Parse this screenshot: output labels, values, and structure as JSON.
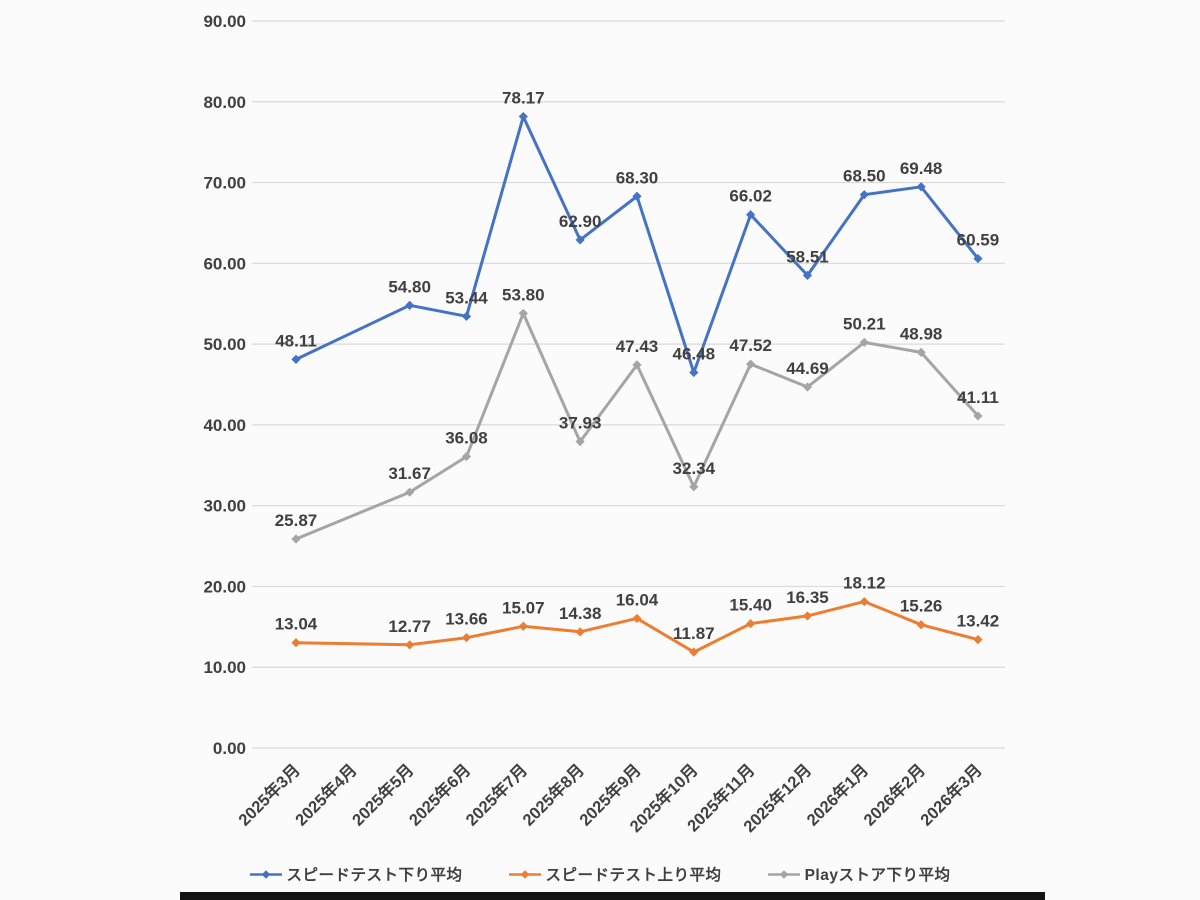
{
  "chart_data": {
    "type": "line",
    "title": "",
    "xlabel": "",
    "ylabel": "",
    "grid": true,
    "marker": "diamond",
    "value_format": "0.00",
    "legend_position": "bottom",
    "categories": [
      "2025年3月",
      "2025年4月",
      "2025年5月",
      "2025年6月",
      "2025年7月",
      "2025年8月",
      "2025年9月",
      "2025年10月",
      "2025年11月",
      "2025年12月",
      "2026年1月",
      "2026年2月",
      "2026年3月"
    ],
    "note_missing_data_month": "2025年4月",
    "series": [
      {
        "name": "スピードテスト下り平均",
        "color": "#4472C4",
        "values": [
          48.11,
          null,
          54.8,
          53.44,
          78.17,
          62.9,
          68.3,
          46.48,
          66.02,
          58.51,
          68.5,
          69.48,
          60.59
        ]
      },
      {
        "name": "スピードテスト上り平均",
        "color": "#ED7D31",
        "values": [
          13.04,
          null,
          12.77,
          13.66,
          15.07,
          14.38,
          16.04,
          11.87,
          15.4,
          16.35,
          18.12,
          15.26,
          13.42
        ]
      },
      {
        "name": "Playストア下り平均",
        "color": "#A5A5A5",
        "values": [
          25.87,
          null,
          31.67,
          36.08,
          53.8,
          37.93,
          47.43,
          32.34,
          47.52,
          44.69,
          50.21,
          48.98,
          41.11
        ]
      }
    ],
    "yaxis": {
      "min": 0,
      "max": 90,
      "step": 10,
      "tick_labels": [
        "0.00",
        "10.00",
        "20.00",
        "30.00",
        "40.00",
        "50.00",
        "60.00",
        "70.00",
        "80.00",
        "90.00"
      ]
    }
  },
  "colors": {
    "text": "#404040",
    "gridline": "#D9D9D9",
    "series_blue": "#4472C4",
    "series_orange": "#ED7D31",
    "series_gray": "#A5A5A5"
  }
}
